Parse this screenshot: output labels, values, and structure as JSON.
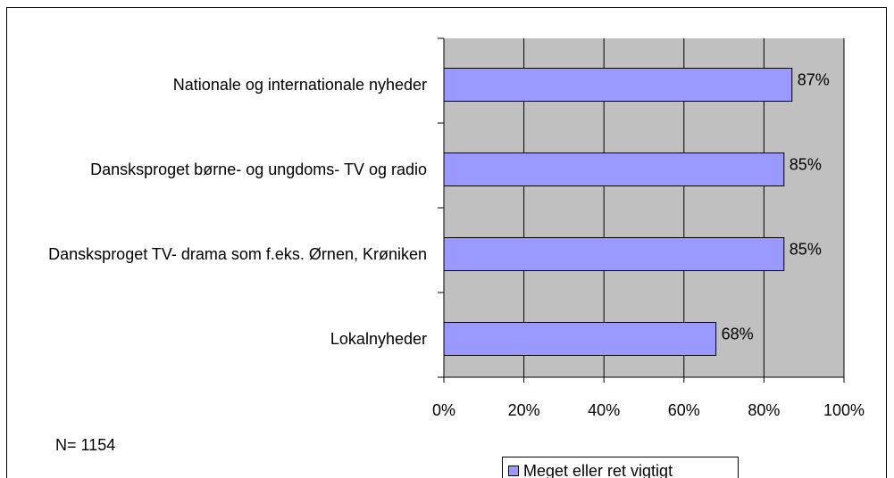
{
  "chart_data": {
    "type": "bar",
    "orientation": "horizontal",
    "categories": [
      "Nationale og internationale nyheder",
      "Dansksproget børne- og ungdoms- TV og radio",
      "Dansksproget TV- drama som f.eks. Ørnen, Krøniken",
      "Lokalnyheder"
    ],
    "series": [
      {
        "name": "Meget eller ret vigtigt",
        "color": "#9999ff",
        "values": [
          87,
          85,
          85,
          68
        ],
        "value_labels": [
          "87%",
          "85%",
          "85%",
          "68%"
        ]
      }
    ],
    "xlim": [
      0,
      100
    ],
    "xticks": [
      {
        "value": 0,
        "label": "0%"
      },
      {
        "value": 20,
        "label": "20%"
      },
      {
        "value": 40,
        "label": "40%"
      },
      {
        "value": 60,
        "label": "60%"
      },
      {
        "value": 80,
        "label": "80%"
      },
      {
        "value": 100,
        "label": "100%"
      }
    ],
    "grid": true,
    "legend": "bottom",
    "plot_background": "#c0c0c0",
    "annotation": "N= 1154"
  }
}
